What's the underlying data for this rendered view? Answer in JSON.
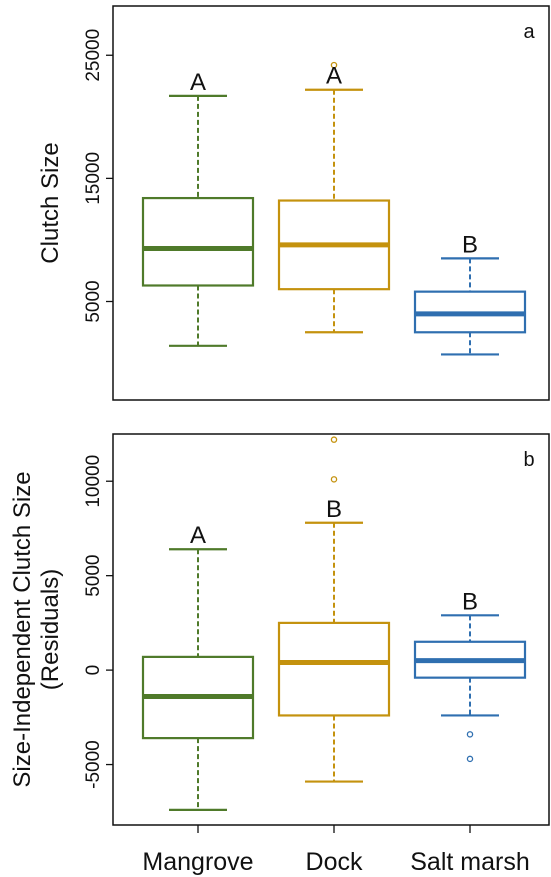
{
  "chart_data": [
    {
      "type": "box",
      "panel_label": "a",
      "ylabel": "Clutch Size",
      "ylabel_line2": "",
      "ylim": [
        -3000,
        29000
      ],
      "yticks": [
        5000,
        15000,
        25000
      ],
      "categories": [
        "Mangrove",
        "Dock",
        "Salt marsh"
      ],
      "colors": [
        "#4f7a2a",
        "#c4920e",
        "#2f6fb0"
      ],
      "boxes": [
        {
          "group": "Mangrove",
          "min": 1400,
          "q1": 6300,
          "median": 9300,
          "q3": 13400,
          "max": 21700,
          "outliers": [],
          "letter": "A"
        },
        {
          "group": "Dock",
          "min": 2500,
          "q1": 6000,
          "median": 9600,
          "q3": 13200,
          "max": 22200,
          "outliers": [
            24200
          ],
          "letter": "A"
        },
        {
          "group": "Salt marsh",
          "min": 700,
          "q1": 2500,
          "median": 4000,
          "q3": 5800,
          "max": 8500,
          "outliers": [],
          "letter": "B"
        }
      ]
    },
    {
      "type": "box",
      "panel_label": "b",
      "ylabel": "Size-Independent Clutch Size",
      "ylabel_line2": "(Residuals)",
      "ylim": [
        -8200,
        12500
      ],
      "yticks": [
        -5000,
        0,
        5000,
        10000
      ],
      "categories": [
        "Mangrove",
        "Dock",
        "Salt marsh"
      ],
      "colors": [
        "#4f7a2a",
        "#c4920e",
        "#2f6fb0"
      ],
      "boxes": [
        {
          "group": "Mangrove",
          "min": -7400,
          "q1": -3600,
          "median": -1400,
          "q3": 700,
          "max": 6400,
          "outliers": [],
          "letter": "A"
        },
        {
          "group": "Dock",
          "min": -5900,
          "q1": -2400,
          "median": 400,
          "q3": 2500,
          "max": 7800,
          "outliers": [
            10100,
            12200
          ],
          "letter": "B"
        },
        {
          "group": "Salt marsh",
          "min": -2400,
          "q1": -400,
          "median": 500,
          "q3": 1500,
          "max": 2900,
          "outliers": [
            -3400,
            -4700
          ],
          "letter": "B"
        }
      ]
    }
  ]
}
